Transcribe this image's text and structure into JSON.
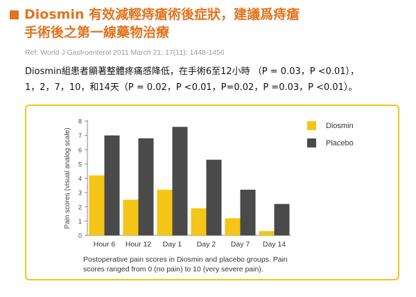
{
  "slide": {
    "title_line1": "Diosmin 有效減輕痔瘡術後症狀，建議爲痔瘡",
    "title_line2": "手術後之第一線藥物治療",
    "reference": "Ref: World J Gastroenterol 2011 March 21; 17(11): 1448-1456",
    "description_line1": "Diosmin組患者顯著整體疼痛感降低，在手術6至12小時 （P = 0.03，P <0.01），",
    "description_line2": "1，2，7，10，和14天（P = 0.02，P <0.01，P=0.02，P =0.03，P <0.01）。",
    "caption_line1": "Postoperative pain scores in Diosmin and placebo groups. Pain",
    "caption_line2": "scores ranged from 0 (no pain) to 10 (very severe pain).",
    "accent_color": "#e2741f",
    "border_color": "#f5c518"
  },
  "chart_data": {
    "type": "bar",
    "categories": [
      "Hour 6",
      "Hour 12",
      "Day 1",
      "Day 2",
      "Day 7",
      "Day 14"
    ],
    "series": [
      {
        "name": "Diosmin",
        "color": "#f5c518",
        "values": [
          4.2,
          2.5,
          3.2,
          1.9,
          1.2,
          0.3
        ]
      },
      {
        "name": "Placebo",
        "color": "#4a4a4a",
        "values": [
          7.0,
          6.8,
          7.6,
          5.3,
          3.2,
          2.2
        ]
      }
    ],
    "ylabel": "Pain scores (visual analog scale)",
    "ylim": [
      0,
      8
    ],
    "yticks": [
      0,
      1,
      2,
      3,
      4,
      5,
      6,
      7,
      8
    ],
    "grid": false,
    "legend_position": "top-right"
  }
}
